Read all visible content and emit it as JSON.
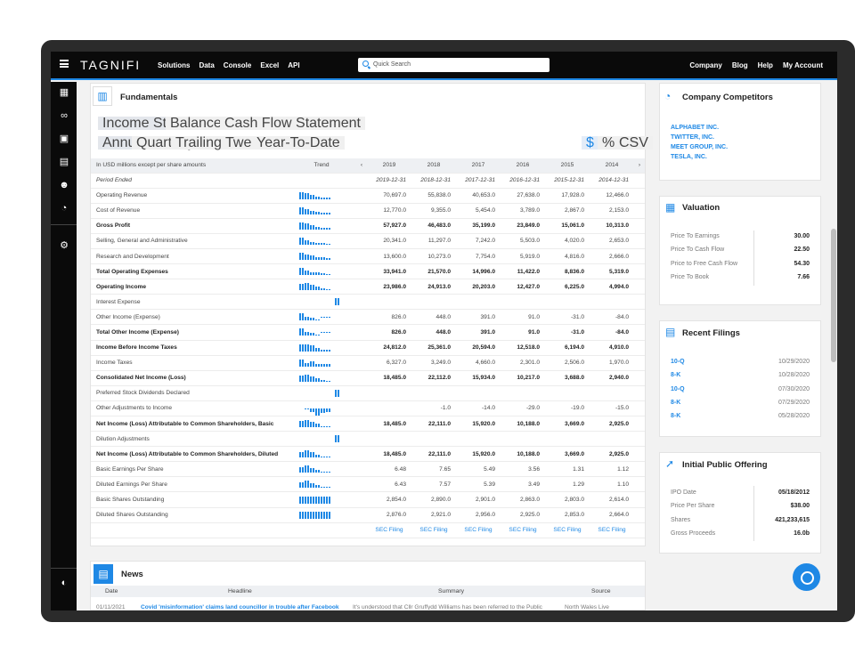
{
  "nav": {
    "logo": "TAGNIFI",
    "links": [
      "Solutions",
      "Data",
      "Console",
      "Excel",
      "API"
    ],
    "search_placeholder": "Quick Search",
    "right": [
      "Company",
      "Blog",
      "Help",
      "My Account"
    ]
  },
  "fundamentals": {
    "title": "Fundamentals",
    "statement_tabs": [
      "Income Statement",
      "Balance Sheet",
      "Cash Flow Statement"
    ],
    "period_tabs": [
      "Annual",
      "Quarterly",
      "Trailing Twelve Months",
      "Year-To-Date"
    ],
    "unit_tabs": [
      "$",
      "%",
      "CSV"
    ],
    "header": [
      "In USD millions except per share amounts",
      "Trend",
      "2019",
      "2018",
      "2017",
      "2016",
      "2015",
      "2014"
    ],
    "rows": [
      {
        "label": "Period Ended",
        "style": "it",
        "v": [
          "2019-12-31",
          "2018-12-31",
          "2017-12-31",
          "2016-12-31",
          "2015-12-31",
          "2014-12-31"
        ]
      },
      {
        "label": "Operating Revenue",
        "style": "",
        "v": [
          "70,697.0",
          "55,838.0",
          "40,653.0",
          "27,638.0",
          "17,928.0",
          "12,466.0"
        ]
      },
      {
        "label": "Cost of Revenue",
        "style": "",
        "v": [
          "12,770.0",
          "9,355.0",
          "5,454.0",
          "3,789.0",
          "2,867.0",
          "2,153.0"
        ]
      },
      {
        "label": "Gross Profit",
        "style": "b",
        "v": [
          "57,927.0",
          "46,483.0",
          "35,199.0",
          "23,849.0",
          "15,061.0",
          "10,313.0"
        ]
      },
      {
        "label": "Selling, General and Administrative",
        "style": "",
        "v": [
          "20,341.0",
          "11,297.0",
          "7,242.0",
          "5,503.0",
          "4,020.0",
          "2,653.0"
        ]
      },
      {
        "label": "Research and Development",
        "style": "",
        "v": [
          "13,600.0",
          "10,273.0",
          "7,754.0",
          "5,919.0",
          "4,816.0",
          "2,666.0"
        ]
      },
      {
        "label": "Total Operating Expenses",
        "style": "b",
        "v": [
          "33,941.0",
          "21,570.0",
          "14,996.0",
          "11,422.0",
          "8,836.0",
          "5,319.0"
        ]
      },
      {
        "label": "Operating Income",
        "style": "b",
        "v": [
          "23,986.0",
          "24,913.0",
          "20,203.0",
          "12,427.0",
          "6,225.0",
          "4,994.0"
        ]
      },
      {
        "label": "Interest Expense",
        "style": "",
        "v": [
          "",
          "",
          "",
          "",
          "",
          ""
        ]
      },
      {
        "label": "Other Income (Expense)",
        "style": "",
        "v": [
          "826.0",
          "448.0",
          "391.0",
          "91.0",
          "-31.0",
          "-84.0"
        ]
      },
      {
        "label": "Total Other Income (Expense)",
        "style": "b",
        "v": [
          "826.0",
          "448.0",
          "391.0",
          "91.0",
          "-31.0",
          "-84.0"
        ]
      },
      {
        "label": "Income Before Income Taxes",
        "style": "b",
        "v": [
          "24,812.0",
          "25,361.0",
          "20,594.0",
          "12,518.0",
          "6,194.0",
          "4,910.0"
        ]
      },
      {
        "label": "Income Taxes",
        "style": "",
        "v": [
          "6,327.0",
          "3,249.0",
          "4,660.0",
          "2,301.0",
          "2,506.0",
          "1,970.0"
        ]
      },
      {
        "label": "Consolidated Net Income (Loss)",
        "style": "b",
        "v": [
          "18,485.0",
          "22,112.0",
          "15,934.0",
          "10,217.0",
          "3,688.0",
          "2,940.0"
        ]
      },
      {
        "label": "Preferred Stock Dividends Declared",
        "style": "",
        "v": [
          "",
          "",
          "",
          "",
          "",
          ""
        ]
      },
      {
        "label": "Other Adjustments to Income",
        "style": "",
        "v": [
          "",
          "-1.0",
          "-14.0",
          "-29.0",
          "-19.0",
          "-15.0"
        ]
      },
      {
        "label": "Net Income (Loss) Attributable to Common Shareholders, Basic",
        "style": "b",
        "v": [
          "18,485.0",
          "22,111.0",
          "15,920.0",
          "10,188.0",
          "3,669.0",
          "2,925.0"
        ]
      },
      {
        "label": "Dilution Adjustments",
        "style": "",
        "v": [
          "",
          "",
          "",
          "",
          "",
          ""
        ]
      },
      {
        "label": "Net Income (Loss) Attributable to Common Shareholders, Diluted",
        "style": "b",
        "v": [
          "18,485.0",
          "22,111.0",
          "15,920.0",
          "10,188.0",
          "3,669.0",
          "2,925.0"
        ]
      },
      {
        "label": "Basic Earnings Per Share",
        "style": "",
        "v": [
          "6.48",
          "7.65",
          "5.49",
          "3.56",
          "1.31",
          "1.12"
        ]
      },
      {
        "label": "Diluted Earnings Per Share",
        "style": "",
        "v": [
          "6.43",
          "7.57",
          "5.39",
          "3.49",
          "1.29",
          "1.10"
        ]
      },
      {
        "label": "Basic Shares Outstanding",
        "style": "",
        "v": [
          "2,854.0",
          "2,890.0",
          "2,901.0",
          "2,863.0",
          "2,803.0",
          "2,614.0"
        ]
      },
      {
        "label": "Diluted Shares Outstanding",
        "style": "",
        "v": [
          "2,876.0",
          "2,921.0",
          "2,956.0",
          "2,925.0",
          "2,853.0",
          "2,664.0"
        ]
      }
    ],
    "sec_label": "SEC Filing"
  },
  "competitors": {
    "title": "Company Competitors",
    "items": [
      "ALPHABET INC.",
      "TWITTER, INC.",
      "MEET GROUP, INC.",
      "TESLA, INC."
    ]
  },
  "valuation": {
    "title": "Valuation",
    "items": [
      {
        "k": "Price To Earnings",
        "v": "30.00"
      },
      {
        "k": "Price To Cash Flow",
        "v": "22.50"
      },
      {
        "k": "Price to Free Cash Flow",
        "v": "54.30"
      },
      {
        "k": "Price To Book",
        "v": "7.66"
      }
    ]
  },
  "filings": {
    "title": "Recent Filings",
    "items": [
      {
        "k": "10-Q",
        "v": "10/29/2020"
      },
      {
        "k": "8-K",
        "v": "10/28/2020"
      },
      {
        "k": "10-Q",
        "v": "07/30/2020"
      },
      {
        "k": "8-K",
        "v": "07/29/2020"
      },
      {
        "k": "8-K",
        "v": "05/28/2020"
      }
    ]
  },
  "ipo": {
    "title": "Initial Public Offering",
    "items": [
      {
        "k": "IPO Date",
        "v": "05/18/2012"
      },
      {
        "k": "Price Per Share",
        "v": "$38.00"
      },
      {
        "k": "Shares",
        "v": "421,233,615"
      },
      {
        "k": "Gross Proceeds",
        "v": "16.0b"
      }
    ]
  },
  "news": {
    "title": "News",
    "cols": [
      "Date",
      "Headline",
      "Summary",
      "Source"
    ],
    "row": [
      "01/11/2021",
      "Covid 'misinformation' claims land councillor in trouble after Facebook",
      "It's understood that Cllr Gruffydd Williams has been referred to the Public",
      "North Wales Live"
    ]
  }
}
